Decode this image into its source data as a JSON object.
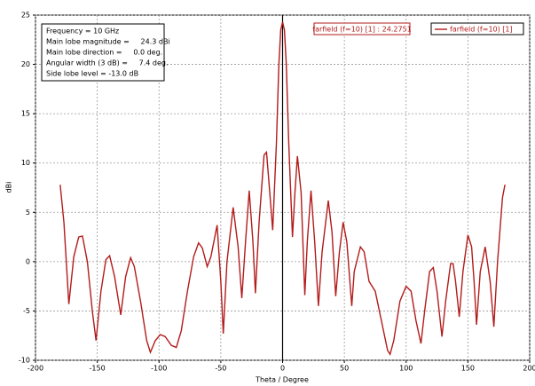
{
  "chart_data": {
    "type": "line",
    "xlabel": "Theta / Degree",
    "ylabel": "dBi",
    "xlim": [
      -200,
      200
    ],
    "ylim": [
      -10,
      25
    ],
    "xticks": [
      -200,
      -150,
      -100,
      -50,
      0,
      50,
      100,
      150,
      200
    ],
    "yticks": [
      -10,
      -5,
      0,
      5,
      10,
      15,
      20,
      25
    ],
    "grid": true,
    "legend_position": "upper right",
    "x": [
      -180,
      -177,
      -173,
      -169,
      -165,
      -162,
      -158,
      -154,
      -151,
      -147,
      -143,
      -140,
      -136,
      -131,
      -127,
      -123,
      -120,
      -115,
      -110,
      -107,
      -103,
      -99,
      -95,
      -90,
      -86,
      -82,
      -77,
      -72,
      -68,
      -65,
      -61,
      -58,
      -53,
      -50,
      -48,
      -45,
      -40,
      -36,
      -33,
      -30,
      -27,
      -24,
      -22,
      -19,
      -15,
      -13,
      -11,
      -8,
      -5,
      -3,
      -1.5,
      0,
      1.5,
      3,
      5,
      8,
      10,
      12,
      15,
      18,
      20,
      23,
      26,
      29,
      32,
      37,
      40,
      43,
      46,
      49,
      52,
      56,
      58,
      63,
      66,
      70,
      75,
      80,
      85,
      87,
      90,
      95,
      100,
      104,
      108,
      112,
      115,
      119,
      122,
      125,
      129,
      132,
      136,
      138,
      140,
      143,
      146,
      150,
      153,
      155,
      157,
      160,
      164,
      168,
      171,
      174,
      178,
      180
    ],
    "series": [
      {
        "name": "farfield (f=10) [1]",
        "color": "#b31b1b",
        "values": [
          7.8,
          4,
          -4.3,
          0.5,
          2.5,
          2.6,
          0,
          -5,
          -8,
          -3,
          0.2,
          0.6,
          -1.5,
          -5.4,
          -1.5,
          0.4,
          -0.5,
          -4,
          -8,
          -9.2,
          -8,
          -7.4,
          -7.6,
          -8.5,
          -8.7,
          -7,
          -3,
          0.5,
          1.9,
          1.4,
          -0.5,
          0.5,
          3.7,
          -2,
          -7.3,
          0,
          5.5,
          1.5,
          -3.7,
          2,
          7.2,
          2,
          -3.2,
          4,
          10.8,
          11.1,
          8,
          3.2,
          12,
          20,
          23.5,
          24.3,
          23.5,
          20,
          12,
          2.5,
          7,
          10.7,
          7,
          -3.4,
          2,
          7.2,
          2,
          -4.5,
          1,
          6.2,
          3,
          -3.5,
          1,
          4,
          2,
          -4.5,
          -1,
          1.5,
          1,
          -2,
          -3,
          -6,
          -9,
          -9.4,
          -8,
          -4,
          -2.5,
          -3,
          -6,
          -8.3,
          -5,
          -1,
          -0.6,
          -3,
          -7.6,
          -4,
          -0.2,
          -0.2,
          -2,
          -5.6,
          -1,
          2.7,
          1.5,
          -2,
          -6.4,
          -1,
          1.5,
          -2,
          -6.6,
          0,
          6.5,
          7.8
        ]
      }
    ],
    "marker": {
      "x": 0,
      "label": "farfield (f=10) [1] : 24.2751"
    },
    "info_box": [
      "Frequency = 10 GHz",
      "Main lobe magnitude =     24.3 dBi",
      "Main lobe direction =     0.0 deg.",
      "Angular width (3 dB) =     7.4 deg.",
      "Side lobe level = -13.0 dB"
    ]
  }
}
